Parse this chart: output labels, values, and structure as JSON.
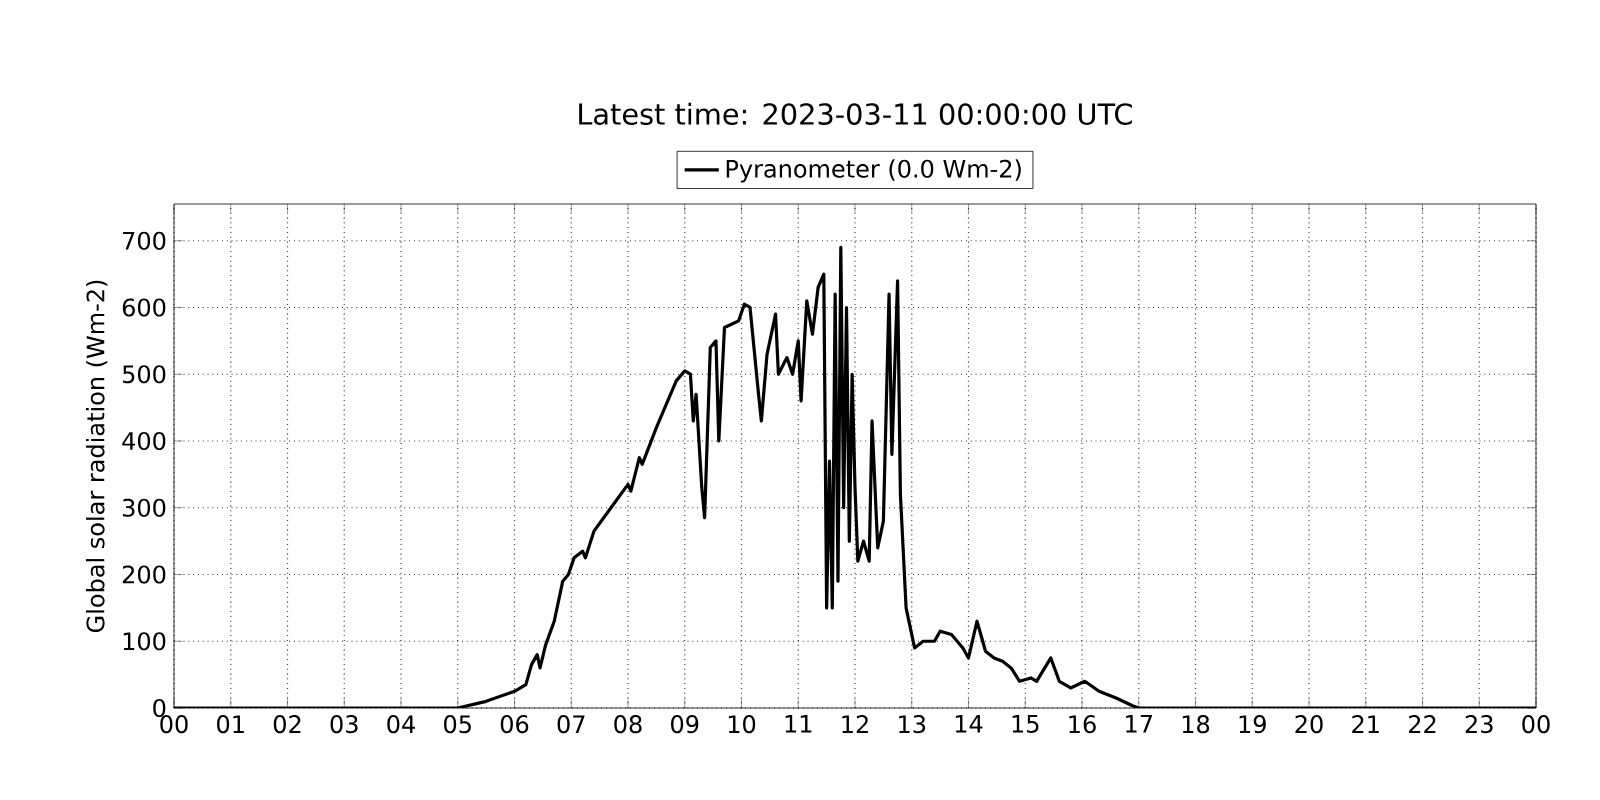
{
  "chart_data": {
    "type": "line",
    "title": "Latest time: 2023-03-11 00:00:00 UTC",
    "ylabel": "Global solar radiation (Wm-2)",
    "legend": "top",
    "x": [
      0,
      5.0,
      5.5,
      6.0,
      6.2,
      6.3,
      6.4,
      6.45,
      6.55,
      6.7,
      6.85,
      6.95,
      7.05,
      7.2,
      7.25,
      7.4,
      7.7,
      8.0,
      8.05,
      8.2,
      8.25,
      8.5,
      8.7,
      8.85,
      9.0,
      9.1,
      9.15,
      9.2,
      9.3,
      9.35,
      9.45,
      9.55,
      9.6,
      9.7,
      9.95,
      10.05,
      10.15,
      10.3,
      10.35,
      10.45,
      10.6,
      10.65,
      10.8,
      10.9,
      11.0,
      11.05,
      11.15,
      11.25,
      11.35,
      11.45,
      11.5,
      11.55,
      11.6,
      11.65,
      11.7,
      11.75,
      11.8,
      11.85,
      11.9,
      11.95,
      12.0,
      12.05,
      12.15,
      12.25,
      12.3,
      12.4,
      12.5,
      12.6,
      12.65,
      12.75,
      12.8,
      12.9,
      13.0,
      13.05,
      13.2,
      13.4,
      13.5,
      13.7,
      13.9,
      14.0,
      14.15,
      14.3,
      14.45,
      14.6,
      14.75,
      14.9,
      15.1,
      15.2,
      15.45,
      15.6,
      15.8,
      16.05,
      16.3,
      16.6,
      16.9,
      17.0,
      24
    ],
    "series": [
      {
        "name": "Pyranometer (0.0 Wm-2)",
        "color": "#000000",
        "values": [
          0,
          0,
          10,
          25,
          35,
          65,
          80,
          60,
          95,
          130,
          190,
          200,
          225,
          235,
          225,
          265,
          300,
          335,
          325,
          375,
          365,
          420,
          460,
          490,
          505,
          500,
          430,
          470,
          330,
          285,
          540,
          550,
          400,
          570,
          580,
          605,
          600,
          470,
          430,
          530,
          590,
          500,
          525,
          500,
          550,
          460,
          610,
          560,
          630,
          650,
          150,
          370,
          150,
          620,
          190,
          690,
          300,
          600,
          250,
          500,
          330,
          220,
          250,
          220,
          430,
          240,
          280,
          620,
          380,
          640,
          320,
          150,
          110,
          90,
          100,
          100,
          115,
          110,
          90,
          75,
          130,
          85,
          75,
          70,
          60,
          40,
          45,
          40,
          75,
          40,
          30,
          40,
          25,
          15,
          3,
          0,
          0
        ]
      }
    ],
    "xlim": [
      0,
      24
    ],
    "ylim": [
      0,
      755
    ],
    "xticks": [
      {
        "value": 0,
        "label": "00"
      },
      {
        "value": 1,
        "label": "01"
      },
      {
        "value": 2,
        "label": "02"
      },
      {
        "value": 3,
        "label": "03"
      },
      {
        "value": 4,
        "label": "04"
      },
      {
        "value": 5,
        "label": "05"
      },
      {
        "value": 6,
        "label": "06"
      },
      {
        "value": 7,
        "label": "07"
      },
      {
        "value": 8,
        "label": "08"
      },
      {
        "value": 9,
        "label": "09"
      },
      {
        "value": 10,
        "label": "10"
      },
      {
        "value": 11,
        "label": "11"
      },
      {
        "value": 12,
        "label": "12"
      },
      {
        "value": 13,
        "label": "13"
      },
      {
        "value": 14,
        "label": "14"
      },
      {
        "value": 15,
        "label": "15"
      },
      {
        "value": 16,
        "label": "16"
      },
      {
        "value": 17,
        "label": "17"
      },
      {
        "value": 18,
        "label": "18"
      },
      {
        "value": 19,
        "label": "19"
      },
      {
        "value": 20,
        "label": "20"
      },
      {
        "value": 21,
        "label": "21"
      },
      {
        "value": 22,
        "label": "22"
      },
      {
        "value": 23,
        "label": "23"
      },
      {
        "value": 24,
        "label": "00"
      }
    ],
    "yticks": [
      0,
      100,
      200,
      300,
      400,
      500,
      600,
      700
    ],
    "grid": true
  }
}
